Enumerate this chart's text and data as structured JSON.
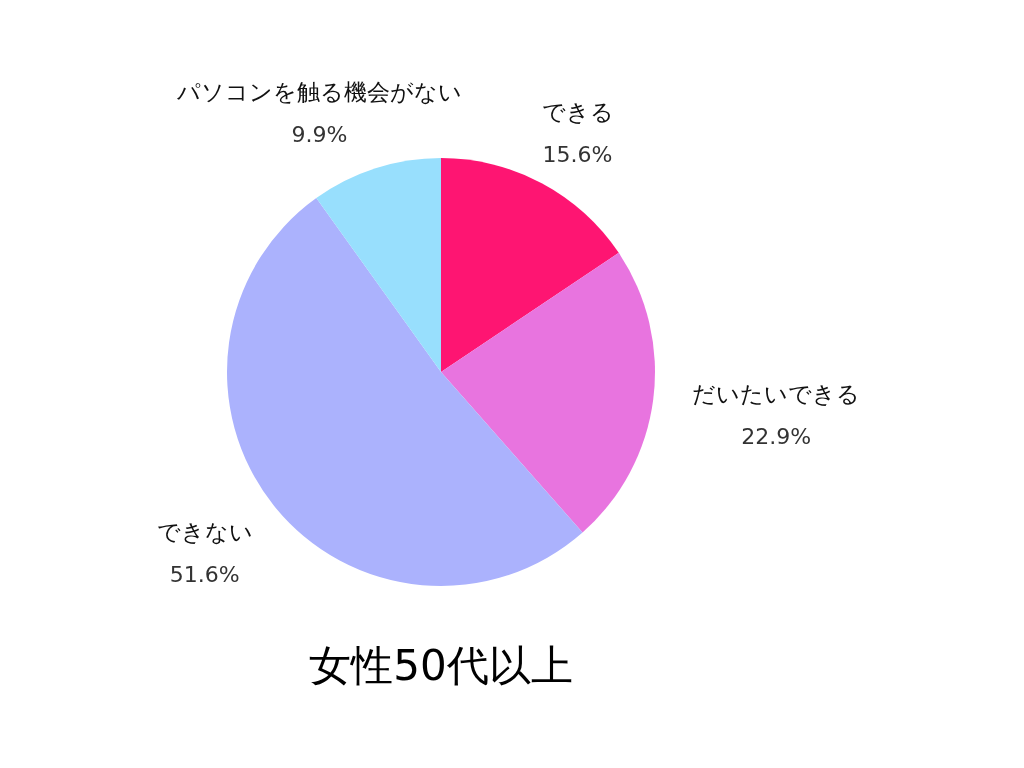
{
  "chart_data": {
    "type": "pie",
    "title": "女性50代以上",
    "categories": [
      "できる",
      "だいたいできる",
      "できない",
      "パソコンを触る機会がない"
    ],
    "values": [
      15.6,
      22.9,
      51.6,
      9.9
    ],
    "colors": [
      "#fe1572",
      "#e874df",
      "#abb2fd",
      "#98dffd"
    ],
    "value_labels": [
      "15.6%",
      "22.9%",
      "51.6%",
      "9.9%"
    ]
  }
}
